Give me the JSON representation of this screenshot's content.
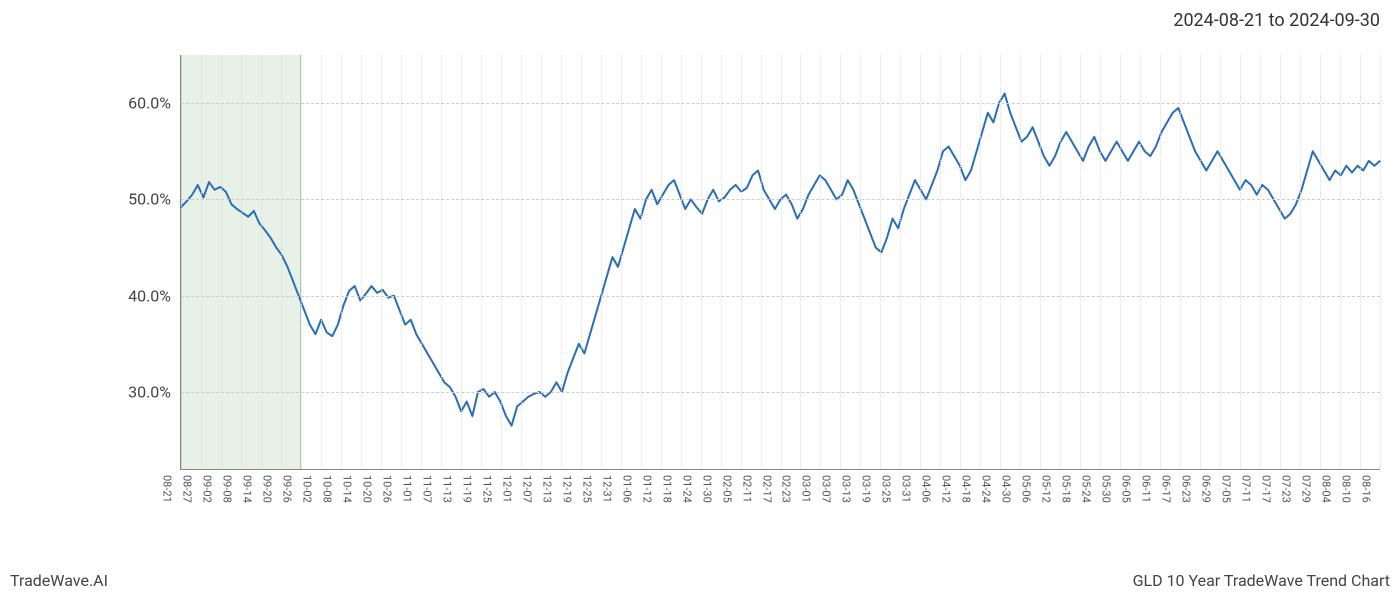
{
  "header": {
    "date_range": "2024-08-21 to 2024-09-30"
  },
  "footer": {
    "left": "TradeWave.AI",
    "right": "GLD 10 Year TradeWave Trend Chart"
  },
  "chart": {
    "type": "line",
    "line_color": "#2a6fb5",
    "line_width": 2,
    "background_color": "#ffffff",
    "grid_h_color": "#cccccc",
    "grid_h_dash": "4,3",
    "grid_v_color": "#dddddd",
    "grid_v_dash": "1,2",
    "axis_color": "#888888",
    "y_label_fontsize": 16,
    "x_label_fontsize": 11,
    "highlight_band": {
      "color": "rgba(160,200,160,0.25)",
      "border_color": "rgba(120,160,120,0.5)",
      "x_start_index": 0,
      "x_end_index": 6
    },
    "ylim": [
      22,
      65
    ],
    "y_ticks": [
      30,
      40,
      50,
      60
    ],
    "y_tick_labels": [
      "30.0%",
      "40.0%",
      "50.0%",
      "60.0%"
    ],
    "x_ticks": [
      "08-21",
      "08-27",
      "09-02",
      "09-08",
      "09-14",
      "09-20",
      "09-26",
      "10-02",
      "10-08",
      "10-14",
      "10-20",
      "10-26",
      "11-01",
      "11-07",
      "11-13",
      "11-19",
      "11-25",
      "12-01",
      "12-07",
      "12-13",
      "12-19",
      "12-25",
      "12-31",
      "01-06",
      "01-12",
      "01-18",
      "01-24",
      "01-30",
      "02-05",
      "02-11",
      "02-17",
      "02-23",
      "03-01",
      "03-07",
      "03-13",
      "03-19",
      "03-25",
      "03-31",
      "04-06",
      "04-12",
      "04-18",
      "04-24",
      "04-30",
      "05-06",
      "05-12",
      "05-18",
      "05-24",
      "05-30",
      "06-05",
      "06-11",
      "06-17",
      "06-23",
      "06-29",
      "07-05",
      "07-11",
      "07-17",
      "07-23",
      "07-29",
      "08-04",
      "08-10",
      "08-16"
    ],
    "series": [
      49.2,
      49.8,
      50.5,
      51.5,
      50.2,
      51.8,
      51.0,
      51.3,
      50.8,
      49.5,
      49.0,
      48.6,
      48.2,
      48.8,
      47.5,
      46.8,
      46.0,
      45.0,
      44.2,
      43.0,
      41.5,
      40.0,
      38.5,
      37.0,
      36.0,
      37.5,
      36.2,
      35.8,
      37.0,
      39.0,
      40.5,
      41.0,
      39.5,
      40.2,
      41.0,
      40.3,
      40.6,
      39.8,
      40.0,
      38.5,
      37.0,
      37.5,
      36.0,
      35.0,
      34.0,
      33.0,
      32.0,
      31.0,
      30.5,
      29.5,
      28.0,
      29.0,
      27.5,
      30.0,
      30.3,
      29.5,
      30.0,
      29.0,
      27.5,
      26.5,
      28.5,
      29.0,
      29.5,
      29.8,
      30.0,
      29.5,
      30.0,
      31.0,
      30.0,
      32.0,
      33.5,
      35.0,
      34.0,
      36.0,
      38.0,
      40.0,
      42.0,
      44.0,
      43.0,
      45.0,
      47.0,
      49.0,
      48.0,
      50.0,
      51.0,
      49.5,
      50.5,
      51.5,
      52.0,
      50.5,
      49.0,
      50.0,
      49.2,
      48.5,
      50.0,
      51.0,
      49.8,
      50.2,
      51.0,
      51.5,
      50.8,
      51.2,
      52.5,
      53.0,
      51.0,
      50.0,
      49.0,
      50.0,
      50.5,
      49.5,
      48.0,
      49.0,
      50.5,
      51.5,
      52.5,
      52.0,
      51.0,
      50.0,
      50.5,
      52.0,
      51.0,
      49.5,
      48.0,
      46.5,
      45.0,
      44.5,
      46.0,
      48.0,
      47.0,
      49.0,
      50.5,
      52.0,
      51.0,
      50.0,
      51.5,
      53.0,
      55.0,
      55.5,
      54.5,
      53.5,
      52.0,
      53.0,
      55.0,
      57.0,
      59.0,
      58.0,
      60.0,
      61.0,
      59.0,
      57.5,
      56.0,
      56.5,
      57.5,
      56.0,
      54.5,
      53.5,
      54.5,
      56.0,
      57.0,
      56.0,
      55.0,
      54.0,
      55.5,
      56.5,
      55.0,
      54.0,
      55.0,
      56.0,
      55.0,
      54.0,
      55.0,
      56.0,
      55.0,
      54.5,
      55.5,
      57.0,
      58.0,
      59.0,
      59.5,
      58.0,
      56.5,
      55.0,
      54.0,
      53.0,
      54.0,
      55.0,
      54.0,
      53.0,
      52.0,
      51.0,
      52.0,
      51.5,
      50.5,
      51.5,
      51.0,
      50.0,
      49.0,
      48.0,
      48.5,
      49.5,
      51.0,
      53.0,
      55.0,
      54.0,
      53.0,
      52.0,
      53.0,
      52.5,
      53.5,
      52.8,
      53.5,
      53.0,
      54.0,
      53.5,
      54.0
    ]
  }
}
